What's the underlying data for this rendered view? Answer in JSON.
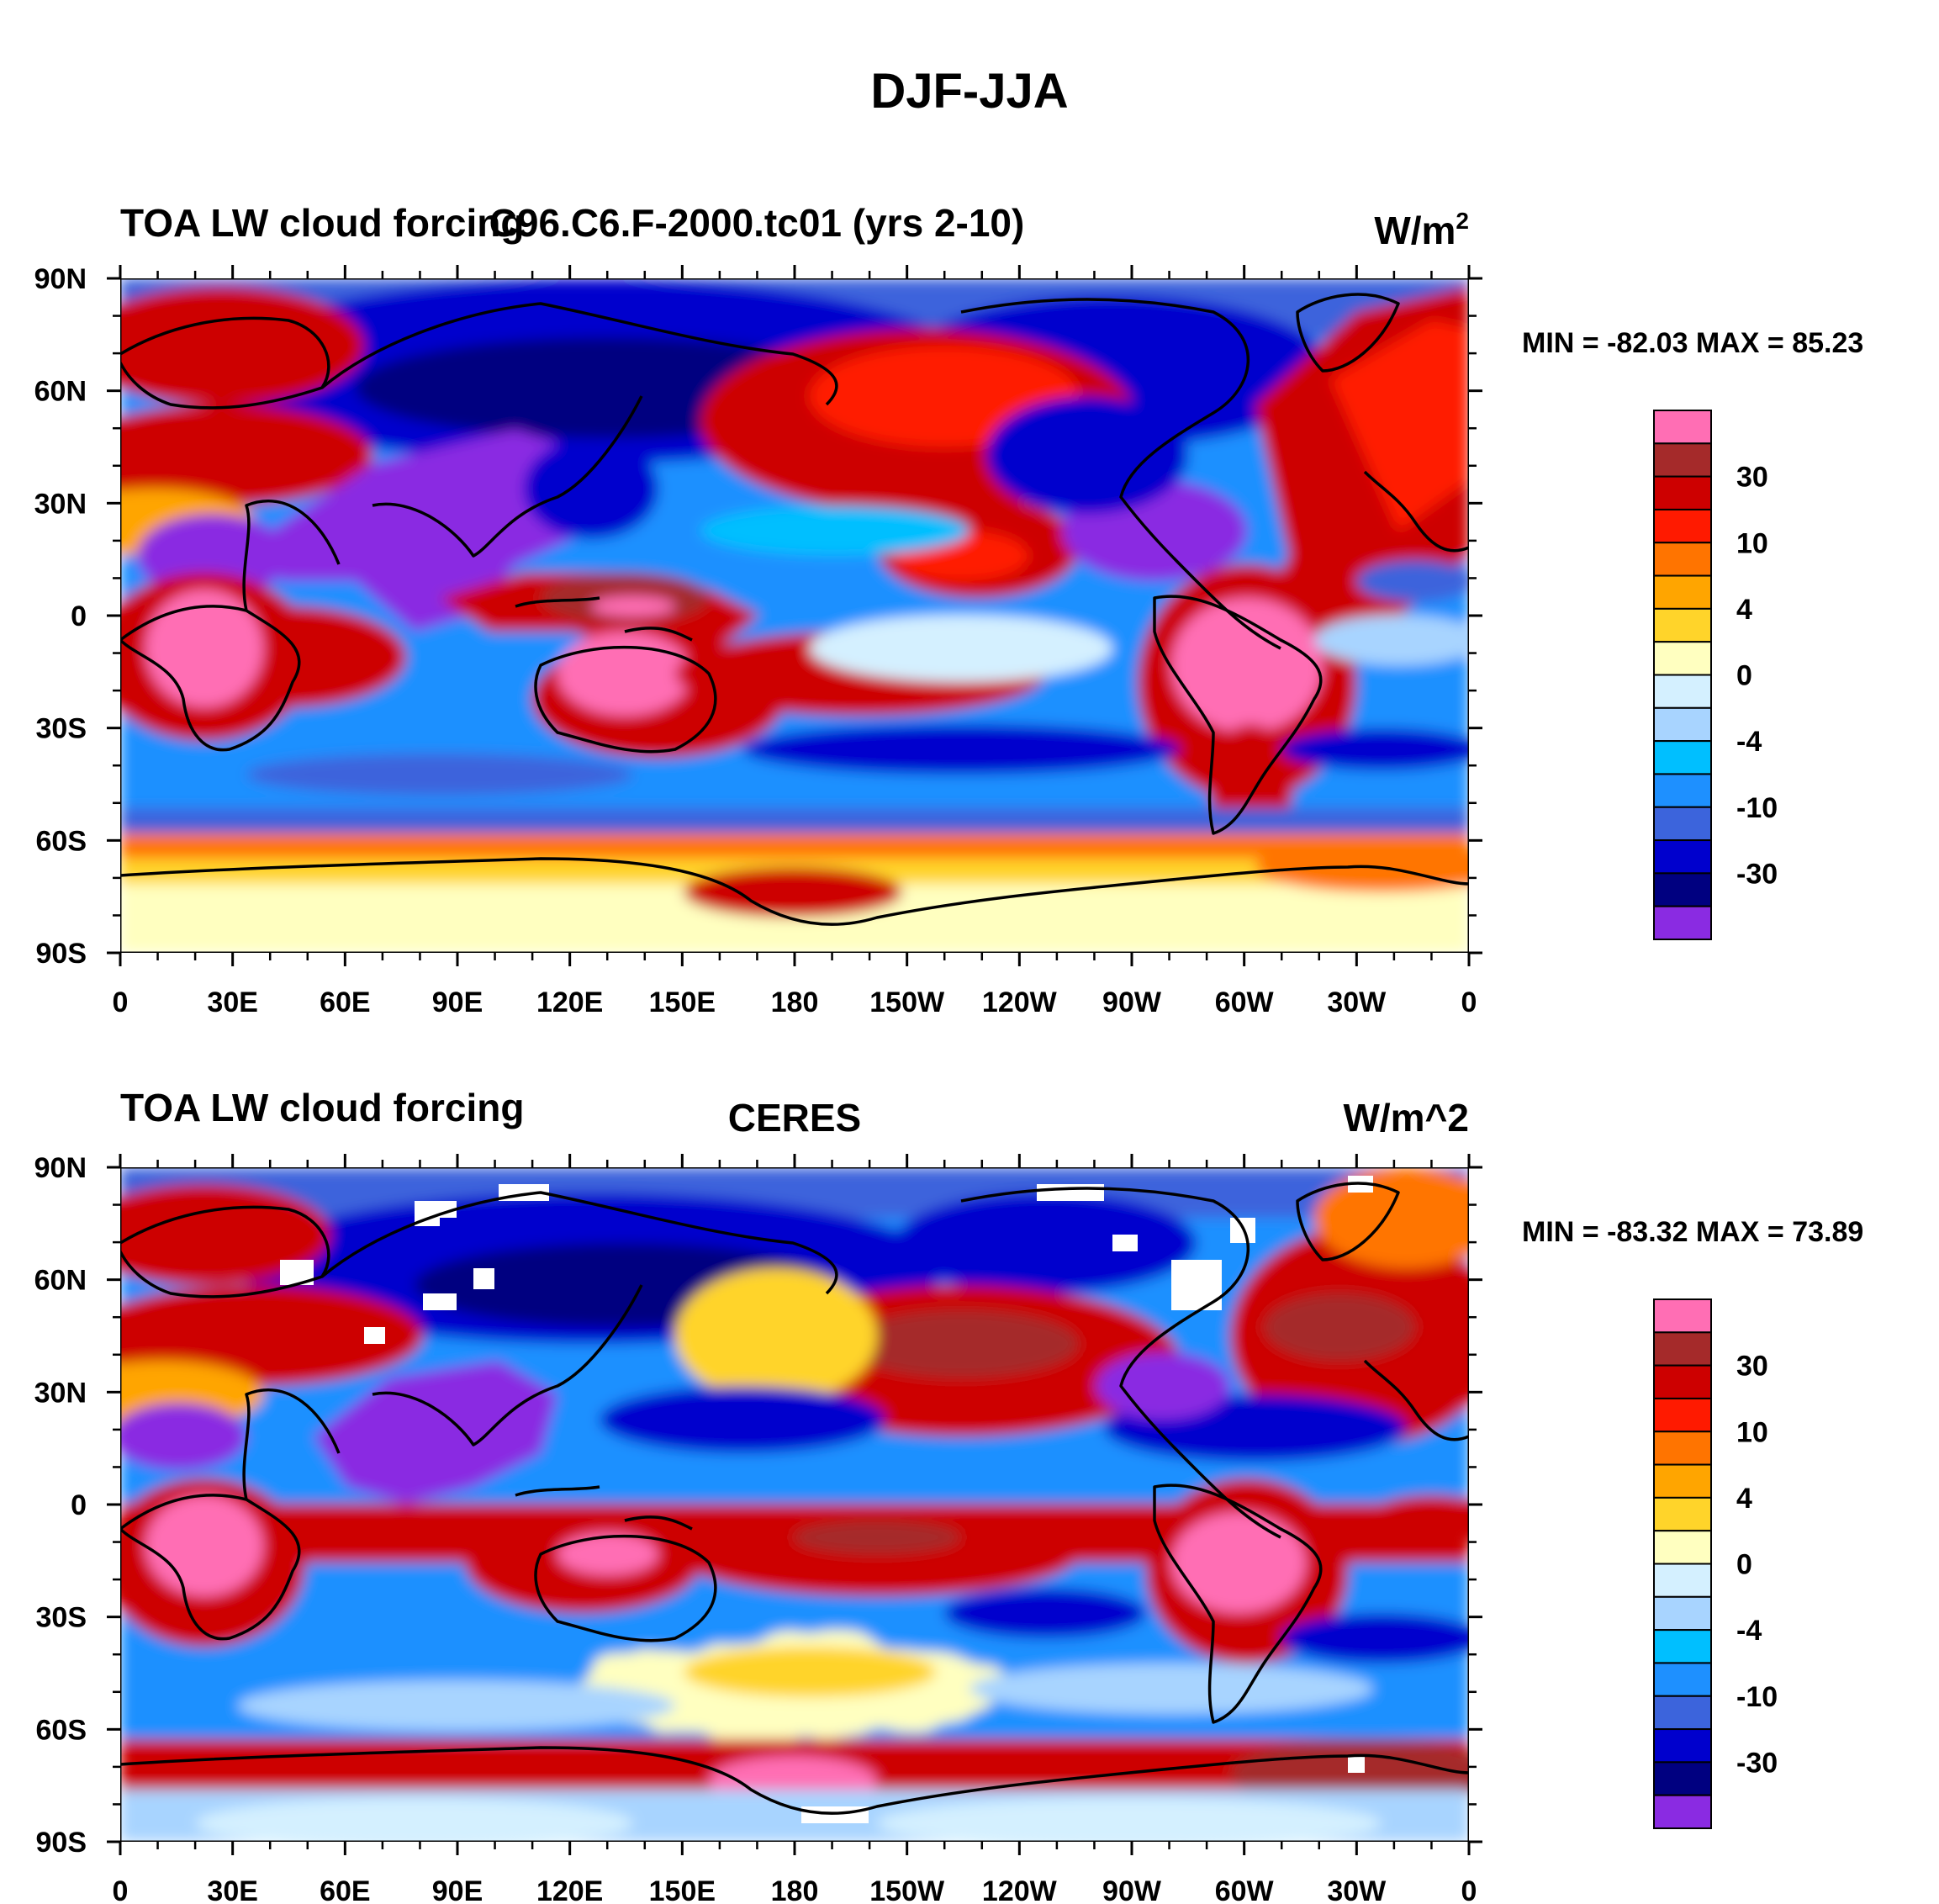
{
  "figure_title": "DJF-JJA",
  "chart_data": [
    {
      "type": "heatmap",
      "panel": "top",
      "title_left": "TOA LW cloud forcing",
      "title_center": "C96.C6.F-2000.tc01 (yrs 2-10)",
      "title_right_base": "W/m",
      "title_right_sup": "2",
      "stats": "MIN = -82.03 MAX =  85.23",
      "min": -82.03,
      "max": 85.23,
      "x_ticks": [
        "0",
        "30E",
        "60E",
        "90E",
        "120E",
        "150E",
        "180",
        "150W",
        "120W",
        "90W",
        "60W",
        "30W",
        "0"
      ],
      "y_ticks": [
        "90N",
        "60N",
        "30N",
        "0",
        "30S",
        "60S",
        "90S"
      ],
      "xlim": [
        0,
        360
      ],
      "ylim": [
        -90,
        90
      ]
    },
    {
      "type": "heatmap",
      "panel": "bottom",
      "title_left": "TOA LW cloud forcing",
      "title_center": "CERES",
      "title_right": "W/m^2",
      "stats": "MIN = -83.32 MAX =  73.89",
      "min": -83.32,
      "max": 73.89,
      "x_ticks": [
        "0",
        "30E",
        "60E",
        "90E",
        "120E",
        "150E",
        "180",
        "150W",
        "120W",
        "90W",
        "60W",
        "30W",
        "0"
      ],
      "y_ticks": [
        "90N",
        "60N",
        "30N",
        "0",
        "30S",
        "60S",
        "90S"
      ],
      "xlim": [
        0,
        360
      ],
      "ylim": [
        -90,
        90
      ]
    }
  ],
  "colorbar": {
    "colors": [
      "#ff6eb4",
      "#a52a2a",
      "#cd0000",
      "#ff1a00",
      "#ff7400",
      "#ffa500",
      "#ffd42a",
      "#ffffc0",
      "#d4f0ff",
      "#a8d4ff",
      "#00bfff",
      "#1e90ff",
      "#3c64dc",
      "#0000cd",
      "#000080",
      "#8a2be2"
    ],
    "labels": [
      "30",
      "10",
      "4",
      "0",
      "-4",
      "-10",
      "-30"
    ]
  }
}
